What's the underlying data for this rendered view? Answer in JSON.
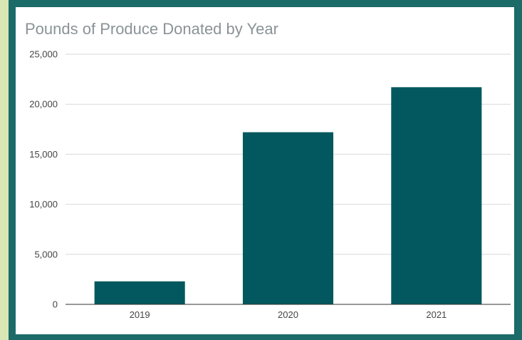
{
  "theme": {
    "page_background": "#d8e7b4",
    "frame_border": "#1b6b68",
    "bar_color": "#02585e",
    "title_color": "#8a9398"
  },
  "chart_data": {
    "type": "bar",
    "title": "Pounds of Produce Donated by Year",
    "xlabel": "",
    "ylabel": "",
    "categories": [
      "2019",
      "2020",
      "2021"
    ],
    "values": [
      2300,
      17200,
      21700
    ],
    "ylim": [
      0,
      25000
    ],
    "yticks": [
      0,
      5000,
      10000,
      15000,
      20000,
      25000
    ],
    "ytick_labels": [
      "0",
      "5,000",
      "10,000",
      "15,000",
      "20,000",
      "25,000"
    ],
    "grid": true,
    "legend": "none"
  }
}
